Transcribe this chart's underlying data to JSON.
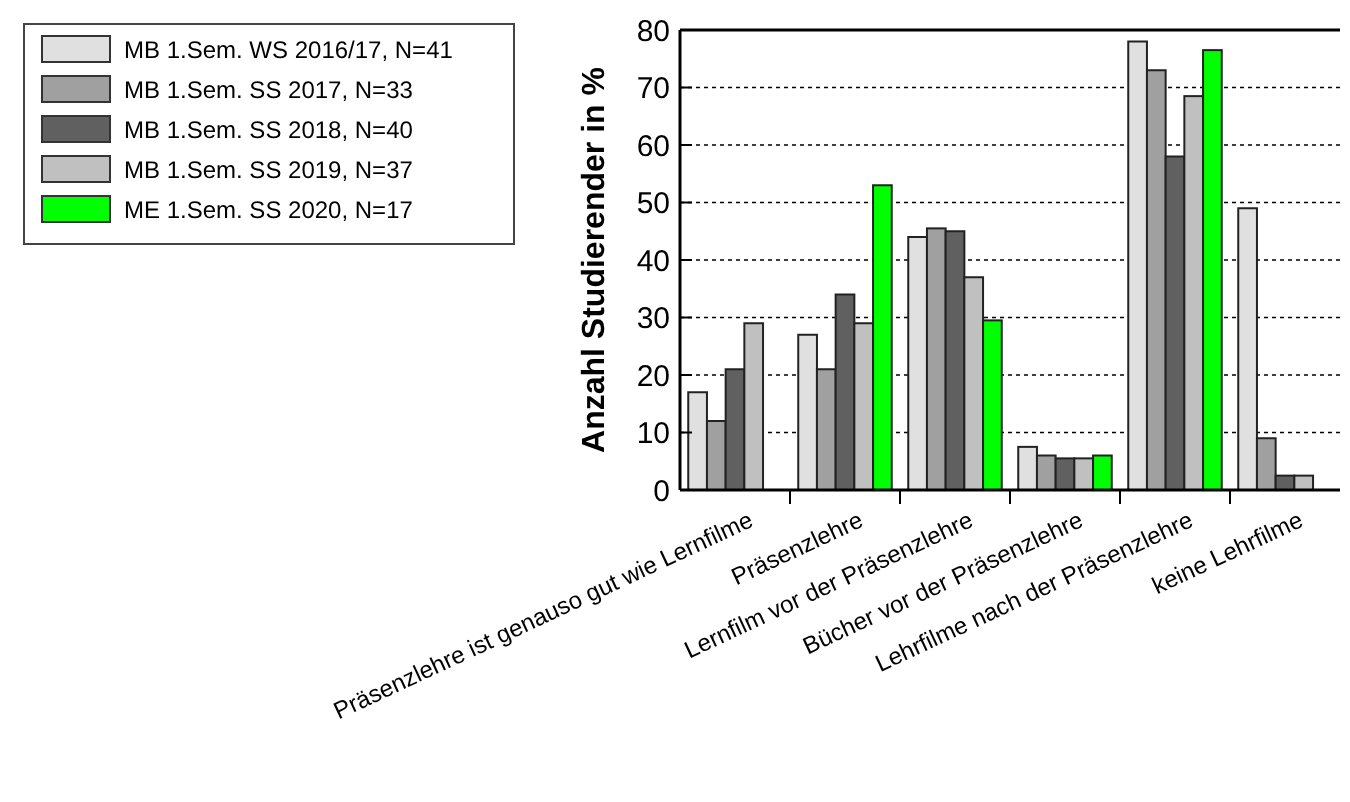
{
  "chart_data": {
    "type": "bar",
    "ylabel": "Anzahl Studierender in %",
    "categories": [
      "Präsenzlehre ist genauso gut wie Lernfilme",
      "Präsenzlehre",
      "Lernfilm vor der Präsenzlehre",
      "Bücher vor der Präsenzlehre",
      "Lehrfilme nach der Präsenzlehre",
      "keine Lehrfilme"
    ],
    "series": [
      {
        "name": "MB 1.Sem. WS 2016/17, N=41",
        "color": "#e0e0e0",
        "values": [
          17,
          27,
          44,
          7.5,
          78,
          49
        ]
      },
      {
        "name": "MB 1.Sem. SS 2017, N=33",
        "color": "#a0a0a0",
        "values": [
          12,
          21,
          45.5,
          6,
          73,
          9
        ]
      },
      {
        "name": "MB 1.Sem. SS 2018, N=40",
        "color": "#606060",
        "values": [
          21,
          34,
          45,
          5.5,
          58,
          2.5
        ]
      },
      {
        "name": "MB 1.Sem. SS 2019, N=37",
        "color": "#c0c0c0",
        "values": [
          29,
          29,
          37,
          5.5,
          68.5,
          2.5
        ]
      },
      {
        "name": "ME 1.Sem. SS 2020, N=17",
        "color": "#00ff00",
        "values": [
          null,
          53,
          29.5,
          6,
          76.5,
          null
        ]
      }
    ],
    "ylim": [
      0,
      80
    ],
    "yticks": [
      0,
      10,
      20,
      30,
      40,
      50,
      60,
      70,
      80
    ],
    "grid": "y",
    "legend": "top left"
  }
}
